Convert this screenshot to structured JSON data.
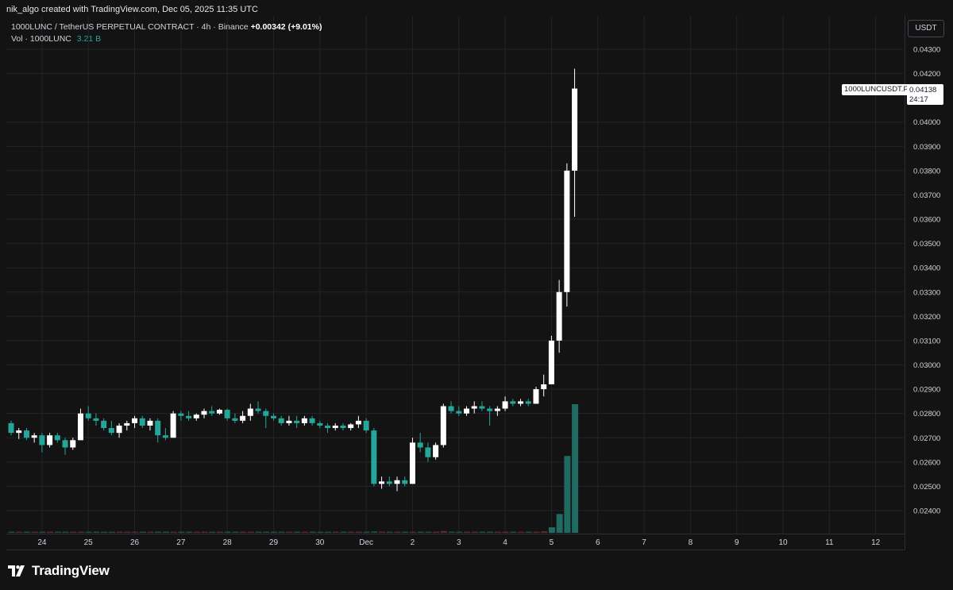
{
  "header": {
    "credit": "nik_algo created with TradingView.com, Dec 05, 2025 11:35 UTC"
  },
  "legend": {
    "symbol": "1000LUNC / TetherUS PERPETUAL CONTRACT",
    "interval": "4h",
    "exchange": "Binance",
    "change": "+0.00342 (+9.01%)",
    "volume_label": "Vol · 1000LUNC",
    "volume_value": "3.21 B"
  },
  "price_scale": {
    "currency": "USDT",
    "symbol_tag": "1000LUNCUSDT.P",
    "last_price": "0.04138",
    "countdown": "24:17"
  },
  "footer": {
    "brand": "TradingView",
    "logo_icon": "tradingview-logo-icon"
  },
  "colors": {
    "background": "#131313",
    "grid": "#232428",
    "bull": "#ffffff",
    "bear": "#26a69a",
    "volume_up": "#f23645",
    "volume_down": "#26a69a",
    "text": "#d1d4dc"
  },
  "chart_data": {
    "type": "candlestick",
    "timeframe": "4h",
    "ylim": [
      0.0232,
      0.0444
    ],
    "y_ticks": [
      "0.04300",
      "0.04200",
      "0.04000",
      "0.03900",
      "0.03800",
      "0.03700",
      "0.03600",
      "0.03500",
      "0.03400",
      "0.03300",
      "0.03200",
      "0.03100",
      "0.03000",
      "0.02900",
      "0.02800",
      "0.02700",
      "0.02600",
      "0.02500",
      "0.02400"
    ],
    "x_ticks": [
      {
        "label": "24",
        "bar": 4
      },
      {
        "label": "25",
        "bar": 10
      },
      {
        "label": "26",
        "bar": 16
      },
      {
        "label": "27",
        "bar": 22
      },
      {
        "label": "28",
        "bar": 28
      },
      {
        "label": "29",
        "bar": 34
      },
      {
        "label": "30",
        "bar": 40
      },
      {
        "label": "Dec",
        "bar": 46
      },
      {
        "label": "2",
        "bar": 52
      },
      {
        "label": "3",
        "bar": 58
      },
      {
        "label": "4",
        "bar": 64
      },
      {
        "label": "5",
        "bar": 70
      },
      {
        "label": "6",
        "bar": 76
      },
      {
        "label": "7",
        "bar": 82
      },
      {
        "label": "8",
        "bar": 88
      },
      {
        "label": "9",
        "bar": 94
      },
      {
        "label": "10",
        "bar": 100
      },
      {
        "label": "11",
        "bar": 106
      },
      {
        "label": "12",
        "bar": 112
      }
    ],
    "candles": [
      {
        "o": 0.0276,
        "h": 0.0277,
        "l": 0.0271,
        "c": 0.0272
      },
      {
        "o": 0.0272,
        "h": 0.0274,
        "l": 0.02695,
        "c": 0.0273
      },
      {
        "o": 0.0273,
        "h": 0.0274,
        "l": 0.0269,
        "c": 0.027
      },
      {
        "o": 0.027,
        "h": 0.0272,
        "l": 0.0268,
        "c": 0.0271
      },
      {
        "o": 0.0271,
        "h": 0.0272,
        "l": 0.0264,
        "c": 0.0267
      },
      {
        "o": 0.0267,
        "h": 0.0272,
        "l": 0.0266,
        "c": 0.0271
      },
      {
        "o": 0.0271,
        "h": 0.0272,
        "l": 0.0268,
        "c": 0.0269
      },
      {
        "o": 0.0269,
        "h": 0.027,
        "l": 0.0263,
        "c": 0.0266
      },
      {
        "o": 0.0266,
        "h": 0.027,
        "l": 0.0265,
        "c": 0.0269
      },
      {
        "o": 0.0269,
        "h": 0.0282,
        "l": 0.0269,
        "c": 0.028
      },
      {
        "o": 0.028,
        "h": 0.0283,
        "l": 0.0277,
        "c": 0.0278
      },
      {
        "o": 0.0278,
        "h": 0.028,
        "l": 0.0275,
        "c": 0.0277
      },
      {
        "o": 0.0277,
        "h": 0.0278,
        "l": 0.0273,
        "c": 0.0274
      },
      {
        "o": 0.0274,
        "h": 0.0277,
        "l": 0.0271,
        "c": 0.0272
      },
      {
        "o": 0.0272,
        "h": 0.0276,
        "l": 0.027,
        "c": 0.0275
      },
      {
        "o": 0.0275,
        "h": 0.0277,
        "l": 0.0273,
        "c": 0.0276
      },
      {
        "o": 0.0276,
        "h": 0.0279,
        "l": 0.0274,
        "c": 0.0278
      },
      {
        "o": 0.0278,
        "h": 0.0279,
        "l": 0.0274,
        "c": 0.0275
      },
      {
        "o": 0.0275,
        "h": 0.0278,
        "l": 0.0273,
        "c": 0.0277
      },
      {
        "o": 0.0277,
        "h": 0.0278,
        "l": 0.0268,
        "c": 0.0271
      },
      {
        "o": 0.0271,
        "h": 0.0274,
        "l": 0.0269,
        "c": 0.027
      },
      {
        "o": 0.027,
        "h": 0.0281,
        "l": 0.027,
        "c": 0.028
      },
      {
        "o": 0.028,
        "h": 0.0281,
        "l": 0.0277,
        "c": 0.0279
      },
      {
        "o": 0.0279,
        "h": 0.0281,
        "l": 0.0277,
        "c": 0.0278
      },
      {
        "o": 0.0278,
        "h": 0.028,
        "l": 0.0277,
        "c": 0.02795
      },
      {
        "o": 0.02795,
        "h": 0.0282,
        "l": 0.0278,
        "c": 0.0281
      },
      {
        "o": 0.0281,
        "h": 0.0283,
        "l": 0.0279,
        "c": 0.028
      },
      {
        "o": 0.028,
        "h": 0.0282,
        "l": 0.02795,
        "c": 0.02815
      },
      {
        "o": 0.02815,
        "h": 0.0282,
        "l": 0.0277,
        "c": 0.0278
      },
      {
        "o": 0.0278,
        "h": 0.028,
        "l": 0.0276,
        "c": 0.0277
      },
      {
        "o": 0.0277,
        "h": 0.0281,
        "l": 0.0276,
        "c": 0.0279
      },
      {
        "o": 0.0279,
        "h": 0.0284,
        "l": 0.0277,
        "c": 0.0282
      },
      {
        "o": 0.0282,
        "h": 0.0285,
        "l": 0.028,
        "c": 0.0281
      },
      {
        "o": 0.0281,
        "h": 0.0282,
        "l": 0.0274,
        "c": 0.0279
      },
      {
        "o": 0.0279,
        "h": 0.028,
        "l": 0.0277,
        "c": 0.0278
      },
      {
        "o": 0.0278,
        "h": 0.0279,
        "l": 0.0275,
        "c": 0.0276
      },
      {
        "o": 0.0276,
        "h": 0.0279,
        "l": 0.0275,
        "c": 0.0277
      },
      {
        "o": 0.0277,
        "h": 0.0279,
        "l": 0.0274,
        "c": 0.0276
      },
      {
        "o": 0.0276,
        "h": 0.0279,
        "l": 0.0275,
        "c": 0.0278
      },
      {
        "o": 0.0278,
        "h": 0.0279,
        "l": 0.0275,
        "c": 0.0276
      },
      {
        "o": 0.0276,
        "h": 0.0277,
        "l": 0.0274,
        "c": 0.0275
      },
      {
        "o": 0.0275,
        "h": 0.0276,
        "l": 0.0272,
        "c": 0.0274
      },
      {
        "o": 0.0274,
        "h": 0.0276,
        "l": 0.0273,
        "c": 0.0275
      },
      {
        "o": 0.0275,
        "h": 0.0276,
        "l": 0.0273,
        "c": 0.0274
      },
      {
        "o": 0.0274,
        "h": 0.0276,
        "l": 0.0273,
        "c": 0.02755
      },
      {
        "o": 0.02755,
        "h": 0.0279,
        "l": 0.0274,
        "c": 0.0277
      },
      {
        "o": 0.0277,
        "h": 0.0278,
        "l": 0.0272,
        "c": 0.0273
      },
      {
        "o": 0.0273,
        "h": 0.0274,
        "l": 0.025,
        "c": 0.0251
      },
      {
        "o": 0.0251,
        "h": 0.0254,
        "l": 0.0249,
        "c": 0.0252
      },
      {
        "o": 0.0252,
        "h": 0.0254,
        "l": 0.025,
        "c": 0.0251
      },
      {
        "o": 0.0251,
        "h": 0.0254,
        "l": 0.0248,
        "c": 0.02525
      },
      {
        "o": 0.02525,
        "h": 0.0254,
        "l": 0.025,
        "c": 0.0251
      },
      {
        "o": 0.0251,
        "h": 0.027,
        "l": 0.0251,
        "c": 0.0268
      },
      {
        "o": 0.0268,
        "h": 0.0272,
        "l": 0.0264,
        "c": 0.0266
      },
      {
        "o": 0.0266,
        "h": 0.0268,
        "l": 0.026,
        "c": 0.0262
      },
      {
        "o": 0.0262,
        "h": 0.0268,
        "l": 0.0261,
        "c": 0.0267
      },
      {
        "o": 0.0267,
        "h": 0.0284,
        "l": 0.0266,
        "c": 0.0283
      },
      {
        "o": 0.0283,
        "h": 0.0285,
        "l": 0.028,
        "c": 0.0281
      },
      {
        "o": 0.0281,
        "h": 0.0283,
        "l": 0.0279,
        "c": 0.028
      },
      {
        "o": 0.028,
        "h": 0.0283,
        "l": 0.0279,
        "c": 0.0282
      },
      {
        "o": 0.0282,
        "h": 0.0285,
        "l": 0.028,
        "c": 0.0283
      },
      {
        "o": 0.0283,
        "h": 0.0285,
        "l": 0.0281,
        "c": 0.0282
      },
      {
        "o": 0.0282,
        "h": 0.0283,
        "l": 0.0275,
        "c": 0.0281
      },
      {
        "o": 0.0281,
        "h": 0.0283,
        "l": 0.0279,
        "c": 0.0282
      },
      {
        "o": 0.0282,
        "h": 0.0287,
        "l": 0.0281,
        "c": 0.0285
      },
      {
        "o": 0.0285,
        "h": 0.0286,
        "l": 0.0283,
        "c": 0.0284
      },
      {
        "o": 0.0284,
        "h": 0.0286,
        "l": 0.0283,
        "c": 0.0285
      },
      {
        "o": 0.0285,
        "h": 0.0286,
        "l": 0.0283,
        "c": 0.0284
      },
      {
        "o": 0.0284,
        "h": 0.0291,
        "l": 0.0284,
        "c": 0.029
      },
      {
        "o": 0.029,
        "h": 0.0296,
        "l": 0.0287,
        "c": 0.0292
      },
      {
        "o": 0.0292,
        "h": 0.0312,
        "l": 0.0292,
        "c": 0.031
      },
      {
        "o": 0.031,
        "h": 0.0335,
        "l": 0.0305,
        "c": 0.033
      },
      {
        "o": 0.033,
        "h": 0.0383,
        "l": 0.0324,
        "c": 0.038
      },
      {
        "o": 0.038,
        "h": 0.0422,
        "l": 0.0361,
        "c": 0.04138
      }
    ],
    "volume": [
      {
        "v": 0.1,
        "up": false
      },
      {
        "v": 0.15,
        "up": true
      },
      {
        "v": 0.12,
        "up": false
      },
      {
        "v": 0.13,
        "up": true
      },
      {
        "v": 0.2,
        "up": false
      },
      {
        "v": 0.14,
        "up": true
      },
      {
        "v": 0.12,
        "up": false
      },
      {
        "v": 0.18,
        "up": false
      },
      {
        "v": 0.13,
        "up": true
      },
      {
        "v": 0.25,
        "up": true
      },
      {
        "v": 0.18,
        "up": false
      },
      {
        "v": 0.13,
        "up": false
      },
      {
        "v": 0.12,
        "up": false
      },
      {
        "v": 0.14,
        "up": false
      },
      {
        "v": 0.13,
        "up": true
      },
      {
        "v": 0.12,
        "up": true
      },
      {
        "v": 0.14,
        "up": true
      },
      {
        "v": 0.12,
        "up": false
      },
      {
        "v": 0.12,
        "up": true
      },
      {
        "v": 0.15,
        "up": false
      },
      {
        "v": 0.12,
        "up": false
      },
      {
        "v": 0.22,
        "up": true
      },
      {
        "v": 0.13,
        "up": false
      },
      {
        "v": 0.12,
        "up": false
      },
      {
        "v": 0.11,
        "up": true
      },
      {
        "v": 0.12,
        "up": true
      },
      {
        "v": 0.13,
        "up": false
      },
      {
        "v": 0.11,
        "up": true
      },
      {
        "v": 0.14,
        "up": false
      },
      {
        "v": 0.12,
        "up": false
      },
      {
        "v": 0.12,
        "up": true
      },
      {
        "v": 0.15,
        "up": true
      },
      {
        "v": 0.14,
        "up": false
      },
      {
        "v": 0.15,
        "up": false
      },
      {
        "v": 0.12,
        "up": false
      },
      {
        "v": 0.12,
        "up": false
      },
      {
        "v": 0.11,
        "up": true
      },
      {
        "v": 0.12,
        "up": false
      },
      {
        "v": 0.11,
        "up": true
      },
      {
        "v": 0.11,
        "up": false
      },
      {
        "v": 0.1,
        "up": false
      },
      {
        "v": 0.12,
        "up": false
      },
      {
        "v": 0.1,
        "up": true
      },
      {
        "v": 0.1,
        "up": false
      },
      {
        "v": 0.11,
        "up": true
      },
      {
        "v": 0.14,
        "up": true
      },
      {
        "v": 0.2,
        "up": false
      },
      {
        "v": 0.45,
        "up": false
      },
      {
        "v": 0.25,
        "up": true
      },
      {
        "v": 0.15,
        "up": false
      },
      {
        "v": 0.18,
        "up": true
      },
      {
        "v": 0.13,
        "up": false
      },
      {
        "v": 0.3,
        "up": true
      },
      {
        "v": 0.2,
        "up": false
      },
      {
        "v": 0.18,
        "up": false
      },
      {
        "v": 0.15,
        "up": true
      },
      {
        "v": 0.55,
        "up": true
      },
      {
        "v": 0.2,
        "up": false
      },
      {
        "v": 0.14,
        "up": false
      },
      {
        "v": 0.14,
        "up": true
      },
      {
        "v": 0.18,
        "up": true
      },
      {
        "v": 0.14,
        "up": false
      },
      {
        "v": 0.2,
        "up": false
      },
      {
        "v": 0.12,
        "up": true
      },
      {
        "v": 0.2,
        "up": true
      },
      {
        "v": 0.12,
        "up": false
      },
      {
        "v": 0.14,
        "up": true
      },
      {
        "v": 0.12,
        "up": false
      },
      {
        "v": 0.3,
        "up": true
      },
      {
        "v": 0.5,
        "up": true
      },
      {
        "v": 1.7,
        "up": true
      },
      {
        "v": 5.7,
        "up": true
      },
      {
        "v": 23.3,
        "up": true
      },
      {
        "v": 39.0,
        "up": true
      }
    ]
  }
}
